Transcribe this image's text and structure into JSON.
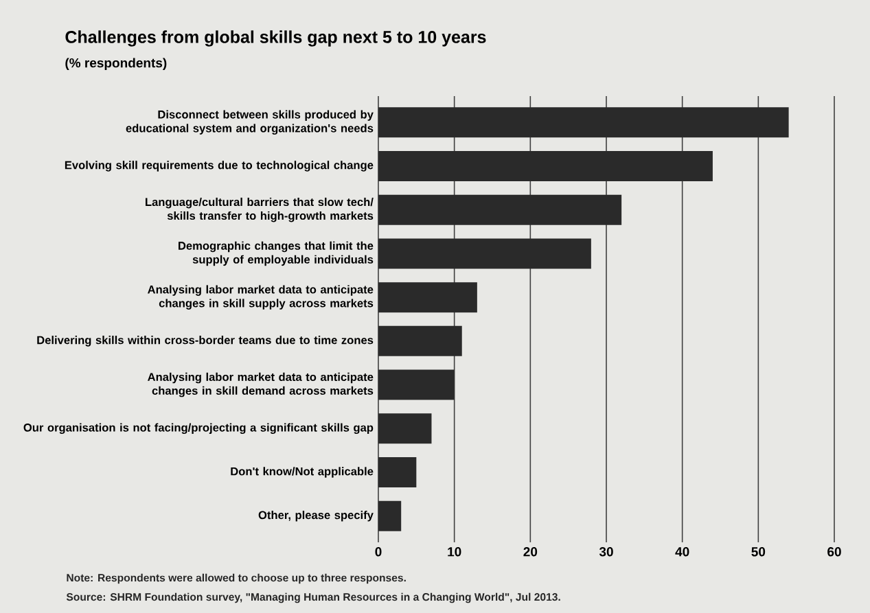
{
  "chart_data": {
    "type": "bar",
    "orientation": "horizontal",
    "title": "Challenges from global skills gap next 5 to 10 years",
    "subtitle": "(% respondents)",
    "categories": [
      "Disconnect between skills produced by educational system and organization's needs",
      "Evolving skill requirements due to technological change",
      "Language/cultural barriers that slow tech/ skills transfer to high-growth markets",
      "Demographic changes that limit the supply of employable individuals",
      "Analysing labor market data to anticipate changes in skill supply across markets",
      "Delivering skills within cross-border teams due to time zones",
      "Analysing labor market data to anticipate changes in skill demand across markets",
      "Our organisation is not facing/projecting a significant skills gap",
      "Don't know/Not applicable",
      "Other, please specify"
    ],
    "values": [
      54,
      44,
      32,
      28,
      13,
      11,
      10,
      7,
      5,
      3
    ],
    "color": "#2a2a2a",
    "xlim": [
      0,
      60
    ],
    "xticks": [
      0,
      10,
      20,
      30,
      40,
      50,
      60
    ],
    "grid": "x",
    "annotations": [
      "Note: Respondents were allowed to choose up to three responses.",
      "Source: SHRM Foundation survey, \"Managing Human Resources in a Changing World\", Jul 2013."
    ]
  }
}
